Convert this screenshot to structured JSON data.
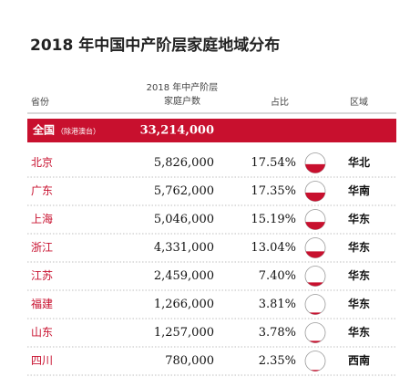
{
  "title": "2018 年中国中产阶层家庭地域分布",
  "header": {
    "province": "省份",
    "households_line1": "2018 年中产阶层",
    "households_line2": "家庭户数",
    "share": "占比",
    "region": "区域"
  },
  "total": {
    "name": "全国",
    "note": "（除港澳台）",
    "households": "33,214,000"
  },
  "rows": [
    {
      "province": "北京",
      "households": "5,826,000",
      "share": {
        "value": 17.54,
        "label": "17.54%"
      },
      "region": "华北"
    },
    {
      "province": "广东",
      "households": "5,762,000",
      "share": {
        "value": 17.35,
        "label": "17.35%"
      },
      "region": "华南"
    },
    {
      "province": "上海",
      "households": "5,046,000",
      "share": {
        "value": 15.19,
        "label": "15.19%"
      },
      "region": "华东"
    },
    {
      "province": "浙江",
      "households": "4,331,000",
      "share": {
        "value": 13.04,
        "label": "13.04%"
      },
      "region": "华东"
    },
    {
      "province": "江苏",
      "households": "2,459,000",
      "share": {
        "value": 7.4,
        "label": "7.40%"
      },
      "region": "华东"
    },
    {
      "province": "福建",
      "households": "1,266,000",
      "share": {
        "value": 3.81,
        "label": "3.81%"
      },
      "region": "华东"
    },
    {
      "province": "山东",
      "households": "1,257,000",
      "share": {
        "value": 3.78,
        "label": "3.78%"
      },
      "region": "华东"
    },
    {
      "province": "四川",
      "households": "780,000",
      "share": {
        "value": 2.35,
        "label": "2.35%"
      },
      "region": "西南"
    }
  ]
}
